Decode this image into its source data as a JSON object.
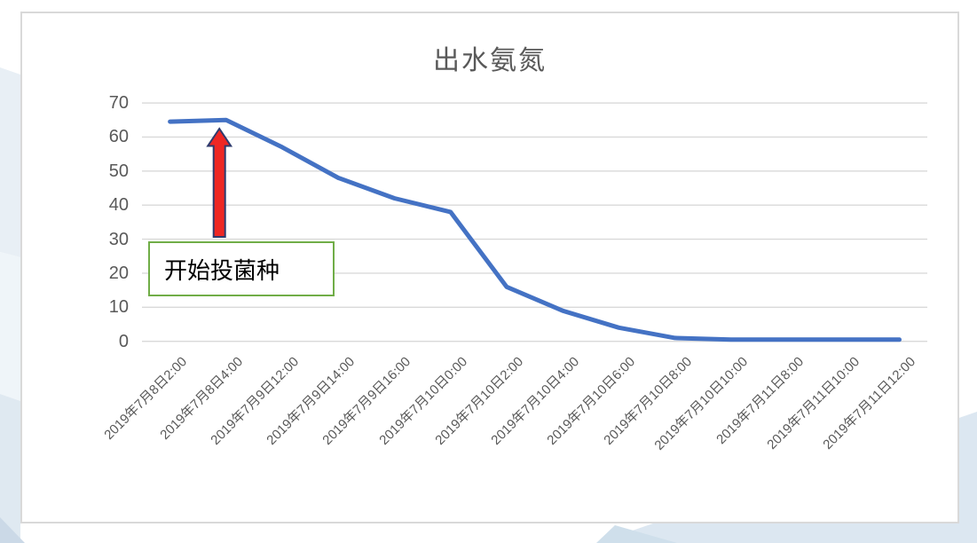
{
  "page": {
    "background_color": "#ffffff",
    "decoration_colors": [
      "#e8eff5",
      "#eff5f9",
      "#dfe9f1",
      "#cbd9e7",
      "#dce7f1",
      "#cfdfeb"
    ]
  },
  "chart_data": {
    "type": "line",
    "title": "出水氨氮",
    "categories": [
      "2019年7月8日2:00",
      "2019年7月8日4:00",
      "2019年7月9日12:00",
      "2019年7月9日14:00",
      "2019年7月9日16:00",
      "2019年7月10日0:00",
      "2019年7月10日2:00",
      "2019年7月10日4:00",
      "2019年7月10日6:00",
      "2019年7月10日8:00",
      "2019年7月10日10:00",
      "2019年7月11日8:00",
      "2019年7月11日10:00",
      "2019年7月11日12:00"
    ],
    "values": [
      64.5,
      65,
      57,
      48,
      42,
      38,
      16,
      9,
      4,
      1,
      0.5,
      0.5,
      0.5,
      0.5
    ],
    "xlabel": "",
    "ylabel": "",
    "ylim": [
      0,
      70
    ],
    "yticks": [
      0,
      10,
      20,
      30,
      40,
      50,
      60,
      70
    ],
    "grid": true,
    "legend_position": "none",
    "line_color": "#4472C4",
    "gridline_color": "#D9D9D9",
    "axis_label_color": "#595959",
    "title_color": "#595959",
    "annotation": {
      "text": "开始投菌种",
      "target_category": "2019年7月8日4:00",
      "arrow_fill": "#EE2724",
      "arrow_outline": "#2E3B6E",
      "box_border": "#70AD47",
      "box_fill": "#FFFFFF",
      "text_color": "#000000"
    }
  }
}
